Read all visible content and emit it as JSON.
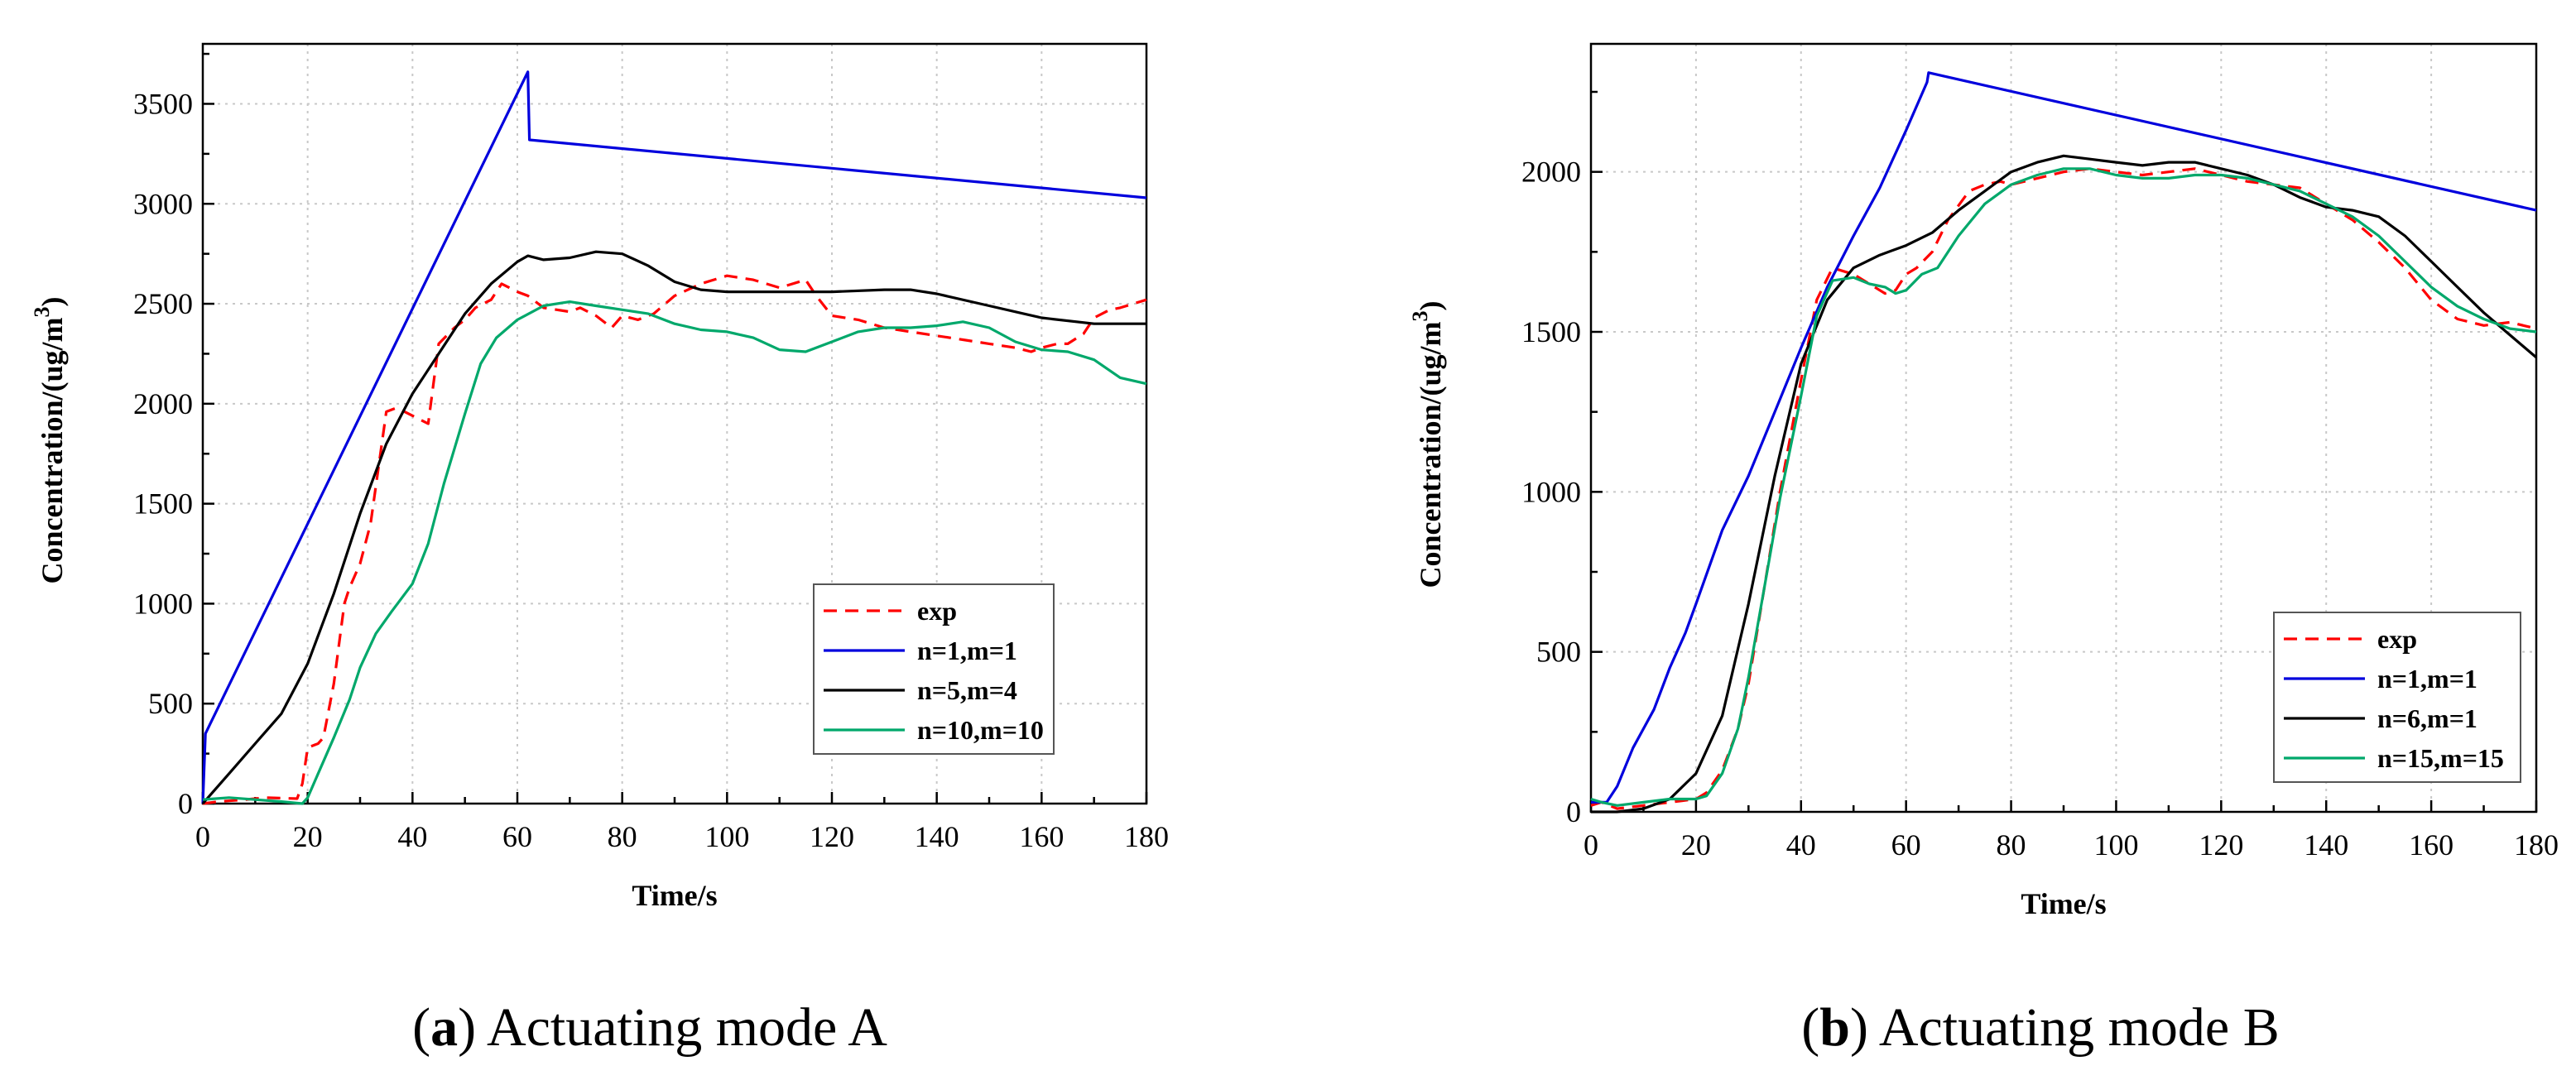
{
  "chart_data": [
    {
      "type": "line",
      "caption_letter": "a",
      "caption_text": "Actuating mode A",
      "xlabel": "Time/s",
      "ylabel": "Concentration/(ug/m",
      "ylabel_sup": "3",
      "ylabel_close": ")",
      "xlim": [
        0,
        180
      ],
      "ylim": [
        0,
        3800
      ],
      "xticks": [
        0,
        20,
        40,
        60,
        80,
        100,
        120,
        140,
        160,
        180
      ],
      "yticks": [
        0,
        500,
        1000,
        1500,
        2000,
        2500,
        3000,
        3500
      ],
      "grid": true,
      "legend_position": "lower-right",
      "series": [
        {
          "name": "exp",
          "color": "#ff0000",
          "dash": true,
          "x": [
            0,
            3,
            8,
            12,
            18,
            19,
            20,
            22,
            23,
            25,
            27,
            28,
            30,
            32,
            35,
            37,
            40,
            43,
            45,
            48,
            50,
            52,
            55,
            57,
            60,
            62,
            65,
            70,
            72,
            75,
            78,
            80,
            83,
            86,
            90,
            95,
            100,
            105,
            110,
            115,
            117,
            120,
            125,
            130,
            135,
            140,
            145,
            150,
            155,
            158,
            160,
            163,
            165,
            168,
            170,
            173,
            175,
            180
          ],
          "y": [
            0,
            10,
            20,
            30,
            25,
            100,
            280,
            300,
            330,
            600,
            1000,
            1080,
            1200,
            1400,
            1960,
            1980,
            1940,
            1900,
            2300,
            2380,
            2420,
            2480,
            2520,
            2600,
            2560,
            2540,
            2480,
            2460,
            2480,
            2440,
            2380,
            2440,
            2420,
            2450,
            2540,
            2600,
            2640,
            2620,
            2580,
            2620,
            2540,
            2440,
            2420,
            2380,
            2360,
            2340,
            2320,
            2300,
            2280,
            2260,
            2280,
            2300,
            2300,
            2350,
            2430,
            2470,
            2480,
            2520
          ]
        },
        {
          "name": "n=1,m=1",
          "color": "#0000dd",
          "dash": false,
          "x": [
            0,
            0.5,
            62,
            62.3,
            180
          ],
          "y": [
            0,
            350,
            3660,
            3320,
            3030
          ]
        },
        {
          "name": "n=5,m=4",
          "color": "#000000",
          "dash": false,
          "x": [
            0,
            5,
            10,
            15,
            20,
            25,
            30,
            35,
            40,
            45,
            50,
            55,
            60,
            62,
            65,
            70,
            75,
            80,
            85,
            90,
            95,
            100,
            110,
            120,
            130,
            135,
            140,
            150,
            160,
            170,
            180
          ],
          "y": [
            0,
            150,
            300,
            450,
            700,
            1050,
            1450,
            1800,
            2050,
            2250,
            2450,
            2600,
            2710,
            2740,
            2720,
            2730,
            2760,
            2750,
            2690,
            2610,
            2570,
            2560,
            2560,
            2560,
            2570,
            2570,
            2550,
            2490,
            2430,
            2400,
            2400
          ]
        },
        {
          "name": "n=10,m=10",
          "color": "#00a86b",
          "dash": false,
          "x": [
            0,
            5,
            10,
            15,
            19,
            20,
            22,
            25,
            28,
            30,
            33,
            36,
            40,
            43,
            46,
            50,
            53,
            56,
            60,
            65,
            70,
            75,
            80,
            85,
            90,
            95,
            100,
            105,
            110,
            115,
            120,
            125,
            130,
            135,
            140,
            145,
            150,
            155,
            160,
            165,
            170,
            175,
            180
          ],
          "y": [
            20,
            30,
            20,
            10,
            0,
            30,
            150,
            330,
            520,
            680,
            850,
            960,
            1100,
            1300,
            1600,
            1950,
            2200,
            2330,
            2420,
            2490,
            2510,
            2490,
            2470,
            2450,
            2400,
            2370,
            2360,
            2330,
            2270,
            2260,
            2310,
            2360,
            2380,
            2380,
            2390,
            2410,
            2380,
            2310,
            2270,
            2260,
            2220,
            2130,
            2100
          ]
        }
      ]
    },
    {
      "type": "line",
      "caption_letter": "b",
      "caption_text": "Actuating mode B",
      "xlabel": "Time/s",
      "ylabel": "Concentration/(ug/m",
      "ylabel_sup": "3",
      "ylabel_close": ")",
      "xlim": [
        0,
        180
      ],
      "ylim": [
        0,
        2400
      ],
      "xticks": [
        0,
        20,
        40,
        60,
        80,
        100,
        120,
        140,
        160,
        180
      ],
      "yticks": [
        0,
        500,
        1000,
        1500,
        2000
      ],
      "grid": true,
      "legend_position": "lower-right",
      "series": [
        {
          "name": "exp",
          "color": "#ff0000",
          "dash": true,
          "x": [
            0,
            2,
            5,
            10,
            15,
            20,
            22,
            25,
            28,
            30,
            33,
            36,
            40,
            43,
            46,
            50,
            53,
            56,
            58,
            60,
            62,
            65,
            68,
            72,
            75,
            78,
            80,
            85,
            90,
            95,
            100,
            105,
            110,
            115,
            120,
            125,
            130,
            135,
            140,
            145,
            150,
            155,
            160,
            165,
            170,
            175,
            180
          ],
          "y": [
            20,
            30,
            10,
            20,
            30,
            40,
            60,
            130,
            260,
            400,
            700,
            1000,
            1350,
            1600,
            1700,
            1680,
            1650,
            1620,
            1630,
            1680,
            1700,
            1750,
            1850,
            1940,
            1960,
            1970,
            1960,
            1980,
            2000,
            2010,
            2000,
            1990,
            2000,
            2010,
            1990,
            1970,
            1960,
            1950,
            1900,
            1850,
            1780,
            1700,
            1600,
            1540,
            1520,
            1530,
            1510
          ]
        },
        {
          "name": "n=1,m=1",
          "color": "#0000dd",
          "dash": false,
          "x": [
            0,
            3,
            5,
            8,
            12,
            15,
            18,
            20,
            25,
            30,
            35,
            40,
            45,
            50,
            55,
            60,
            64,
            64.3,
            180
          ],
          "y": [
            30,
            30,
            80,
            200,
            320,
            450,
            560,
            650,
            880,
            1050,
            1250,
            1450,
            1640,
            1800,
            1950,
            2130,
            2280,
            2310,
            1880
          ]
        },
        {
          "name": "n=6,m=1",
          "color": "#000000",
          "dash": false,
          "x": [
            0,
            5,
            10,
            15,
            20,
            25,
            30,
            35,
            40,
            45,
            50,
            55,
            60,
            65,
            70,
            75,
            80,
            85,
            90,
            95,
            100,
            105,
            110,
            115,
            120,
            125,
            130,
            135,
            140,
            145,
            150,
            155,
            160,
            165,
            170,
            175,
            180
          ],
          "y": [
            0,
            0,
            10,
            40,
            120,
            300,
            650,
            1050,
            1400,
            1600,
            1700,
            1740,
            1770,
            1810,
            1880,
            1940,
            2000,
            2030,
            2050,
            2040,
            2030,
            2020,
            2030,
            2030,
            2010,
            1990,
            1960,
            1920,
            1890,
            1880,
            1860,
            1800,
            1720,
            1640,
            1560,
            1490,
            1420
          ]
        },
        {
          "name": "n=15,m=15",
          "color": "#00a86b",
          "dash": false,
          "x": [
            0,
            2,
            5,
            10,
            15,
            20,
            22,
            25,
            28,
            30,
            33,
            36,
            40,
            43,
            46,
            50,
            53,
            56,
            58,
            60,
            63,
            66,
            70,
            75,
            80,
            85,
            90,
            95,
            100,
            105,
            110,
            115,
            120,
            125,
            130,
            135,
            140,
            145,
            150,
            155,
            160,
            165,
            170,
            175,
            180
          ],
          "y": [
            40,
            30,
            20,
            30,
            40,
            40,
            50,
            120,
            260,
            420,
            700,
            980,
            1300,
            1550,
            1660,
            1670,
            1650,
            1640,
            1620,
            1630,
            1680,
            1700,
            1800,
            1900,
            1960,
            1990,
            2010,
            2010,
            1990,
            1980,
            1980,
            1990,
            1990,
            1980,
            1960,
            1940,
            1900,
            1860,
            1800,
            1720,
            1640,
            1580,
            1540,
            1510,
            1500
          ]
        }
      ]
    }
  ]
}
